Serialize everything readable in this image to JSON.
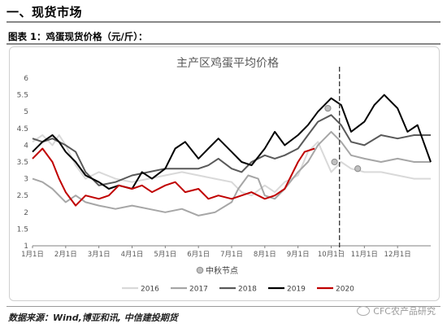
{
  "section_heading": "一、现货市场",
  "figure_caption": "图表 1：鸡蛋现货价格（元/斤）：",
  "source_text": "数据来源：Wind,博亚和讯, 中信建投期货",
  "watermark": "CFC农产品研究",
  "colors": {
    "s2016": "#d9d9d9",
    "s2017": "#a6a6a6",
    "s2018": "#595959",
    "s2019": "#000000",
    "s2020": "#c00000",
    "divider": "#333333"
  },
  "chart_data": {
    "type": "line",
    "title": "主产区鸡蛋平均价格",
    "xlabel": "",
    "ylabel": "",
    "ylim": [
      1,
      6
    ],
    "yticks": [
      "1",
      "1.5",
      "2",
      "2.5",
      "3",
      "3.5",
      "4",
      "4.5",
      "5",
      "5.5",
      "6"
    ],
    "xlim": [
      0,
      12
    ],
    "xticks": [
      "1月1日",
      "2月1日",
      "3月1日",
      "4月1日",
      "5月1日",
      "6月1日",
      "7月1日",
      "8月1日",
      "9月1日",
      "10月1日",
      "11月1日",
      "12月1日"
    ],
    "grid": false,
    "legend": "bottom",
    "divider_x": 9.25,
    "annotation": "中秋节点",
    "series": [
      {
        "name": "2016",
        "color": "#d9d9d9",
        "x": [
          0,
          0.3,
          0.6,
          0.8,
          1.0,
          1.3,
          1.6,
          2.0,
          2.5,
          3.0,
          3.5,
          4.0,
          4.5,
          5.0,
          5.5,
          6.0,
          6.3,
          6.6,
          7.0,
          7.3,
          7.6,
          8.0,
          8.3,
          8.6,
          9.0,
          9.3,
          9.6,
          10.0,
          10.5,
          11.0,
          11.5,
          12.0
        ],
        "y": [
          4.1,
          4.3,
          4.0,
          4.3,
          4.0,
          3.4,
          3.0,
          3.2,
          3.0,
          2.9,
          3.0,
          3.1,
          3.2,
          3.1,
          3.0,
          2.9,
          2.6,
          2.5,
          2.8,
          2.6,
          2.9,
          3.1,
          3.8,
          4.1,
          3.2,
          3.5,
          3.3,
          3.2,
          3.2,
          3.1,
          3.0,
          3.0
        ]
      },
      {
        "name": "2017",
        "color": "#a6a6a6",
        "x": [
          0,
          0.3,
          0.6,
          1.0,
          1.3,
          1.6,
          2.0,
          2.5,
          3.0,
          3.5,
          4.0,
          4.5,
          5.0,
          5.5,
          6.0,
          6.2,
          6.5,
          6.8,
          7.0,
          7.3,
          7.6,
          8.0,
          8.3,
          8.6,
          9.0,
          9.3,
          9.6,
          10.0,
          10.5,
          11.0,
          11.5,
          12.0
        ],
        "y": [
          3.0,
          2.9,
          2.7,
          2.3,
          2.5,
          2.3,
          2.2,
          2.1,
          2.2,
          2.1,
          2.0,
          2.1,
          1.9,
          2.0,
          2.3,
          2.7,
          3.1,
          3.0,
          2.5,
          2.4,
          2.7,
          3.2,
          3.5,
          4.0,
          4.4,
          4.1,
          3.7,
          3.6,
          3.5,
          3.6,
          3.5,
          3.5
        ]
      },
      {
        "name": "2018",
        "color": "#595959",
        "x": [
          0,
          0.3,
          0.6,
          1.0,
          1.3,
          1.6,
          2.0,
          2.5,
          3.0,
          3.5,
          4.0,
          4.5,
          5.0,
          5.3,
          5.6,
          6.0,
          6.3,
          6.6,
          7.0,
          7.3,
          7.6,
          8.0,
          8.3,
          8.6,
          9.0,
          9.3,
          9.6,
          10.0,
          10.5,
          11.0,
          11.5,
          12.0
        ],
        "y": [
          4.2,
          4.1,
          4.2,
          4.0,
          3.8,
          3.2,
          2.8,
          2.9,
          3.1,
          3.2,
          3.3,
          3.3,
          3.3,
          3.4,
          3.6,
          3.3,
          3.2,
          3.5,
          3.7,
          3.6,
          3.7,
          3.9,
          4.3,
          4.7,
          4.9,
          4.6,
          4.1,
          4.0,
          4.3,
          4.2,
          4.3,
          4.3
        ]
      },
      {
        "name": "2019",
        "color": "#000000",
        "x": [
          0,
          0.3,
          0.6,
          0.8,
          1.0,
          1.3,
          1.6,
          2.0,
          2.3,
          2.6,
          3.0,
          3.3,
          3.6,
          4.0,
          4.3,
          4.6,
          5.0,
          5.3,
          5.6,
          6.0,
          6.3,
          6.6,
          7.0,
          7.3,
          7.6,
          8.0,
          8.3,
          8.6,
          9.0,
          9.3,
          9.6,
          10.0,
          10.3,
          10.6,
          11.0,
          11.3,
          11.6,
          12.0
        ],
        "y": [
          3.8,
          4.1,
          4.3,
          4.1,
          3.8,
          3.5,
          3.1,
          2.9,
          2.7,
          2.8,
          2.7,
          3.2,
          3.0,
          3.3,
          3.9,
          4.1,
          3.6,
          3.9,
          4.2,
          3.8,
          3.5,
          3.4,
          3.9,
          4.4,
          4.0,
          4.3,
          4.6,
          5.0,
          5.4,
          5.2,
          4.4,
          4.7,
          5.2,
          5.5,
          5.1,
          4.4,
          4.6,
          3.5
        ]
      },
      {
        "name": "2020",
        "color": "#c00000",
        "x": [
          0,
          0.3,
          0.6,
          0.8,
          1.0,
          1.3,
          1.6,
          2.0,
          2.3,
          2.6,
          3.0,
          3.3,
          3.6,
          4.0,
          4.3,
          4.6,
          5.0,
          5.3,
          5.6,
          6.0,
          6.3,
          6.6,
          7.0,
          7.3,
          7.6,
          8.0,
          8.2,
          8.5
        ],
        "y": [
          3.6,
          3.9,
          3.5,
          3.0,
          2.6,
          2.2,
          2.5,
          2.4,
          2.5,
          2.8,
          2.7,
          2.8,
          2.6,
          2.8,
          2.9,
          2.6,
          2.7,
          2.4,
          2.5,
          2.4,
          2.5,
          2.6,
          2.4,
          2.5,
          2.7,
          3.5,
          3.8,
          3.9
        ]
      }
    ],
    "markers": [
      {
        "x": 8.9,
        "y": 5.1
      },
      {
        "x": 9.1,
        "y": 3.5
      },
      {
        "x": 9.8,
        "y": 3.3
      }
    ]
  }
}
